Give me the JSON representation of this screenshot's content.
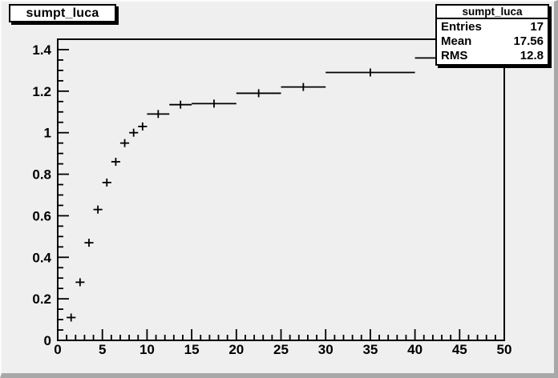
{
  "window": {
    "canvas_bg": "#efefef",
    "box_bg": "#ffffff",
    "line_color": "#000000",
    "bevel_light": "#fbfbfb",
    "bevel_dark": "#a8a8a8"
  },
  "title_box": {
    "label": "sumpt_luca"
  },
  "stats_box": {
    "title": "sumpt_luca",
    "rows": [
      {
        "label": "Entries",
        "value": "17"
      },
      {
        "label": "Mean",
        "value": "17.56"
      },
      {
        "label": "RMS",
        "value": "12.8"
      }
    ]
  },
  "chart_data": {
    "type": "scatter",
    "subtype": "histogram-with-horizontal-error-bars",
    "title": "sumpt_luca",
    "xlabel": "",
    "ylabel": "",
    "xlim": [
      0,
      50
    ],
    "ylim": [
      0,
      1.45
    ],
    "x_major_step": 5,
    "x_minor_step": 1,
    "y_major_step": 0.2,
    "y_minor_step": 0.05,
    "x_tick_labels": [
      "0",
      "5",
      "10",
      "15",
      "20",
      "25",
      "30",
      "35",
      "40",
      "45",
      "50"
    ],
    "y_tick_labels": [
      "0",
      "0.2",
      "0.4",
      "0.6",
      "0.8",
      "1",
      "1.2",
      "1.4"
    ],
    "grid": false,
    "legend": false,
    "marker_color": "#000000",
    "points": [
      {
        "xlow": 1,
        "xhigh": 2,
        "x": 1.5,
        "y": 0.11
      },
      {
        "xlow": 2,
        "xhigh": 3,
        "x": 2.5,
        "y": 0.28
      },
      {
        "xlow": 3,
        "xhigh": 4,
        "x": 3.5,
        "y": 0.47
      },
      {
        "xlow": 4,
        "xhigh": 5,
        "x": 4.5,
        "y": 0.63
      },
      {
        "xlow": 5,
        "xhigh": 6,
        "x": 5.5,
        "y": 0.76
      },
      {
        "xlow": 6,
        "xhigh": 7,
        "x": 6.5,
        "y": 0.86
      },
      {
        "xlow": 7,
        "xhigh": 8,
        "x": 7.5,
        "y": 0.95
      },
      {
        "xlow": 8,
        "xhigh": 9,
        "x": 8.5,
        "y": 1.0
      },
      {
        "xlow": 9,
        "xhigh": 10,
        "x": 9.5,
        "y": 1.03
      },
      {
        "xlow": 10,
        "xhigh": 12.5,
        "x": 11.25,
        "y": 1.09
      },
      {
        "xlow": 12.5,
        "xhigh": 15,
        "x": 13.75,
        "y": 1.135
      },
      {
        "xlow": 15,
        "xhigh": 20,
        "x": 17.5,
        "y": 1.14
      },
      {
        "xlow": 20,
        "xhigh": 25,
        "x": 22.5,
        "y": 1.19
      },
      {
        "xlow": 25,
        "xhigh": 30,
        "x": 27.5,
        "y": 1.22
      },
      {
        "xlow": 30,
        "xhigh": 40,
        "x": 35,
        "y": 1.29
      },
      {
        "xlow": 40,
        "xhigh": 50,
        "x": 45,
        "y": 1.36
      }
    ]
  }
}
